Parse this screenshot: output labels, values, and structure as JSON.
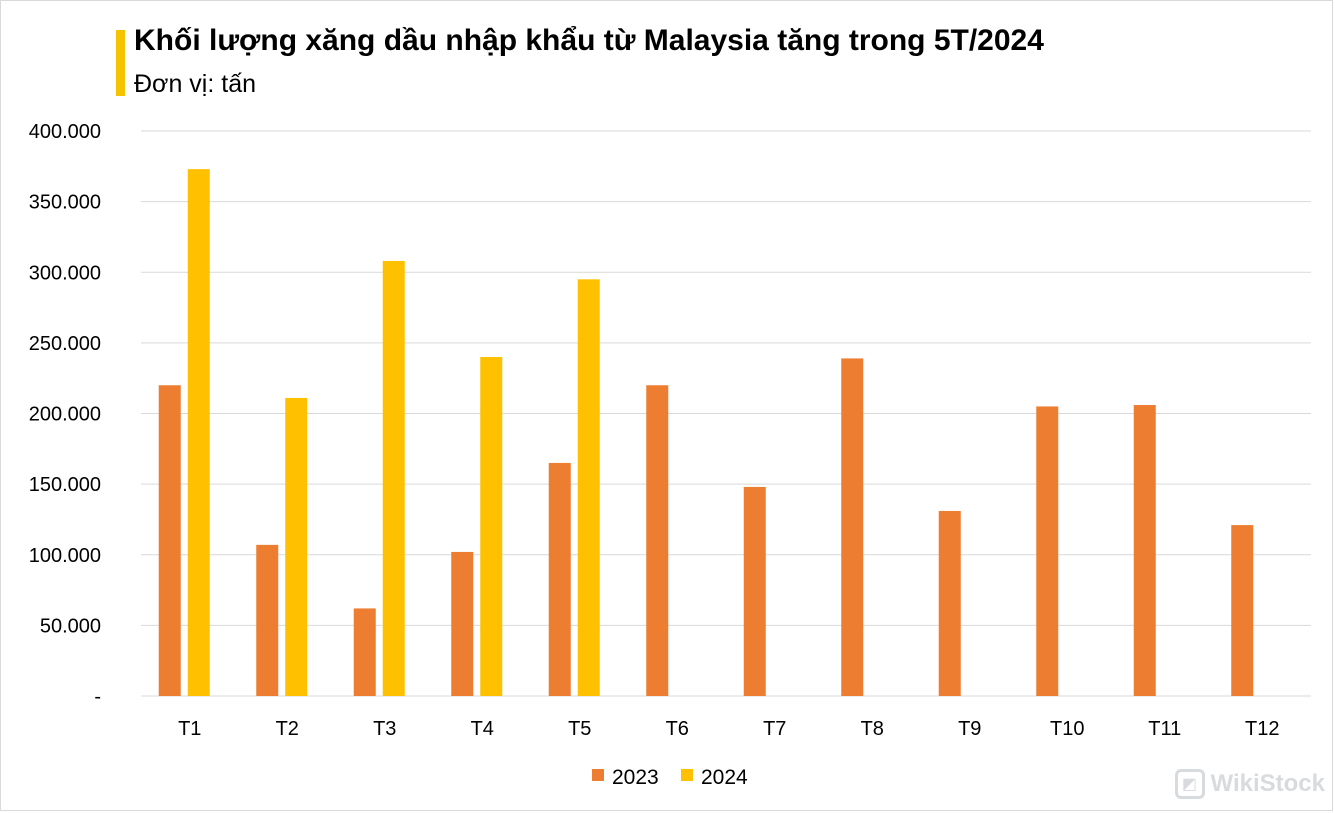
{
  "title": "Khối lượng xăng dầu nhập khẩu từ Malaysia tăng trong 5T/2024",
  "subtitle": "Đơn vị: tấn",
  "watermark": "WikiStock",
  "chart_data": {
    "type": "bar",
    "title": "Khối lượng xăng dầu nhập khẩu từ Malaysia tăng trong 5T/2024",
    "subtitle": "Đơn vị: tấn",
    "categories": [
      "T1",
      "T2",
      "T3",
      "T4",
      "T5",
      "T6",
      "T7",
      "T8",
      "T9",
      "T10",
      "T11",
      "T12"
    ],
    "series": [
      {
        "name": "2023",
        "color": "#ed7d31",
        "values": [
          220000,
          107000,
          62000,
          102000,
          165000,
          220000,
          148000,
          239000,
          131000,
          205000,
          206000,
          121000
        ]
      },
      {
        "name": "2024",
        "color": "#ffc000",
        "values": [
          373000,
          211000,
          308000,
          240000,
          295000,
          null,
          null,
          null,
          null,
          null,
          null,
          null
        ]
      }
    ],
    "yticks": [
      0,
      50000,
      100000,
      150000,
      200000,
      250000,
      300000,
      350000,
      400000
    ],
    "ytick_labels": [
      "-",
      "50.000",
      "100.000",
      "150.000",
      "200.000",
      "250.000",
      "300.000",
      "350.000",
      "400.000"
    ],
    "ylim": [
      0,
      400000
    ],
    "xlabel": "",
    "ylabel": "",
    "grid": true,
    "legend_position": "bottom"
  }
}
